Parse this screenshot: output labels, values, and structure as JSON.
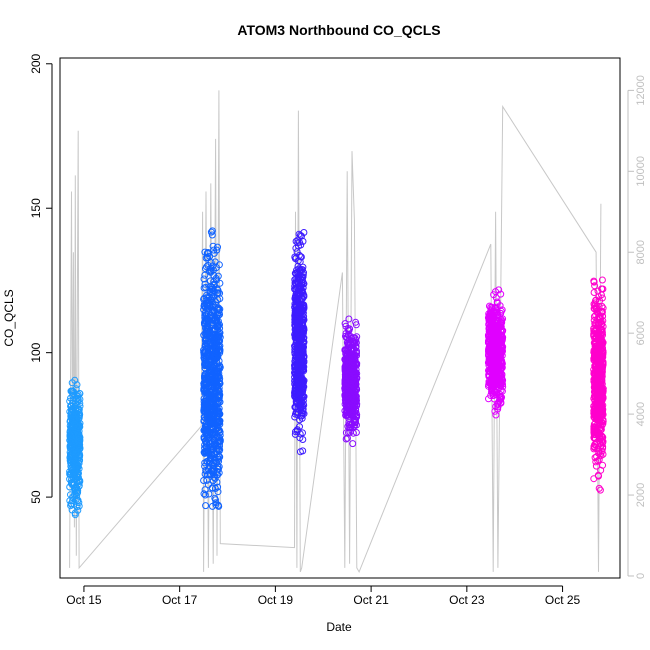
{
  "chart_data": {
    "type": "scatter",
    "title": "ATOM3 Northbound CO_QCLS",
    "xlabel": "Date",
    "ylabel": "CO_QCLS",
    "x_ticks": [
      "Oct 15",
      "Oct 17",
      "Oct 19",
      "Oct 21",
      "Oct 23",
      "Oct 25"
    ],
    "x_tick_days": [
      15,
      17,
      19,
      21,
      23,
      25
    ],
    "xlim_days": [
      14.5,
      26.2
    ],
    "ylim": [
      22,
      202
    ],
    "y_ticks": [
      50,
      100,
      150,
      200
    ],
    "y2_ticks": [
      0,
      2000,
      4000,
      6000,
      8000,
      10000,
      12000
    ],
    "y2lim": [
      -50,
      12800
    ],
    "grid": false,
    "legend": "none",
    "secondary_series": {
      "color": "#c8c8c8",
      "description_of_axis": "right axis",
      "points": [
        [
          14.7,
          200
        ],
        [
          14.72,
          4500
        ],
        [
          14.74,
          9500
        ],
        [
          14.76,
          3000
        ],
        [
          14.78,
          8000
        ],
        [
          14.8,
          1200
        ],
        [
          14.82,
          9900
        ],
        [
          14.84,
          500
        ],
        [
          14.86,
          6000
        ],
        [
          14.88,
          11000
        ],
        [
          14.9,
          200
        ],
        [
          17.45,
          3700
        ],
        [
          17.48,
          9000
        ],
        [
          17.5,
          100
        ],
        [
          17.55,
          9500
        ],
        [
          17.6,
          200
        ],
        [
          17.65,
          9700
        ],
        [
          17.7,
          300
        ],
        [
          17.75,
          10800
        ],
        [
          17.78,
          500
        ],
        [
          17.82,
          12000
        ],
        [
          17.85,
          800
        ],
        [
          19.4,
          700
        ],
        [
          19.42,
          9000
        ],
        [
          19.45,
          200
        ],
        [
          19.48,
          11500
        ],
        [
          19.52,
          100
        ],
        [
          19.55,
          200
        ],
        [
          20.4,
          7500
        ],
        [
          20.45,
          200
        ],
        [
          20.5,
          10000
        ],
        [
          20.55,
          300
        ],
        [
          20.6,
          10500
        ],
        [
          20.65,
          8800
        ],
        [
          20.7,
          200
        ],
        [
          20.75,
          100
        ],
        [
          23.5,
          8200
        ],
        [
          23.55,
          100
        ],
        [
          23.6,
          9000
        ],
        [
          23.65,
          200
        ],
        [
          23.75,
          11600
        ],
        [
          25.7,
          8000
        ],
        [
          25.75,
          100
        ],
        [
          25.8,
          9200
        ]
      ]
    },
    "series": [
      {
        "color": "#1e9bff",
        "x_range": [
          14.7,
          14.92
        ],
        "y_center": 68,
        "y_spread": 28,
        "count": 400
      },
      {
        "color": "#1163ff",
        "x_range": [
          17.5,
          17.85
        ],
        "y_center": 90,
        "y_spread": 60,
        "count": 800
      },
      {
        "color": "#3d1cff",
        "x_range": [
          19.4,
          19.6
        ],
        "y_center": 105,
        "y_spread": 45,
        "count": 600
      },
      {
        "color": "#8a0cff",
        "x_range": [
          20.45,
          20.7
        ],
        "y_center": 90,
        "y_spread": 25,
        "count": 500
      },
      {
        "color": "#e000ff",
        "x_range": [
          23.45,
          23.75
        ],
        "y_center": 100,
        "y_spread": 25,
        "count": 600
      },
      {
        "color": "#ff00cc",
        "x_range": [
          25.65,
          25.85
        ],
        "y_center": 90,
        "y_spread": 40,
        "count": 600
      }
    ]
  }
}
